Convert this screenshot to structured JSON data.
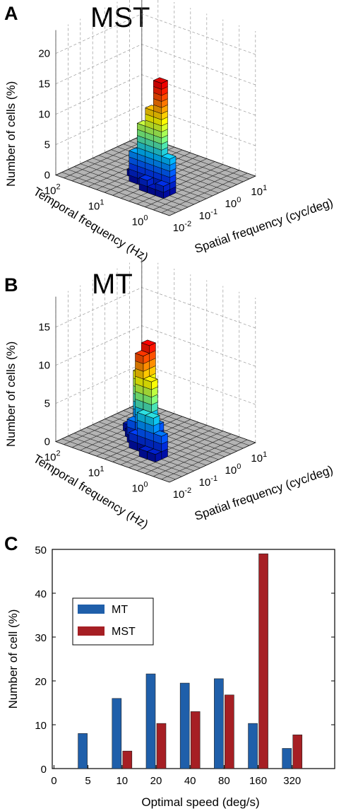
{
  "panels": {
    "a": {
      "letter": "A",
      "title": "MST"
    },
    "b": {
      "letter": "B",
      "title": "MT"
    },
    "c": {
      "letter": "C"
    }
  },
  "chart_data": [
    {
      "type": "bar3d",
      "panel": "A",
      "title": "MST",
      "zlabel": "Number of cells (%)",
      "xlabel": "Temporal frequency (Hz)",
      "ylabel": "Spatial frequency (cyc/deg)",
      "zticks": [
        "0",
        "5",
        "10",
        "15",
        "20"
      ],
      "zlim": [
        0,
        20
      ],
      "temporal_ticks": [
        {
          "base": "10",
          "exp": "2"
        },
        {
          "base": "10",
          "exp": "1"
        },
        {
          "base": "10",
          "exp": "0"
        }
      ],
      "spatial_ticks": [
        {
          "base": "10",
          "exp": "-2"
        },
        {
          "base": "10",
          "exp": "-1"
        },
        {
          "base": "10",
          "exp": "0"
        },
        {
          "base": "10",
          "exp": "1"
        }
      ],
      "colormap": [
        "#00008f",
        "#0040ff",
        "#00c0ff",
        "#80ff80",
        "#ffff00",
        "#ff8000",
        "#ff0000",
        "#800000"
      ],
      "bars": [
        {
          "t": 4,
          "s": 3,
          "value": 1
        },
        {
          "t": 4,
          "s": 4,
          "value": 18
        },
        {
          "t": 5,
          "s": 4,
          "value": 13
        },
        {
          "t": 3,
          "s": 4,
          "value": 6
        },
        {
          "t": 3,
          "s": 3,
          "value": 2
        },
        {
          "t": 5,
          "s": 3,
          "value": 2
        },
        {
          "t": 6,
          "s": 4,
          "value": 10
        },
        {
          "t": 6,
          "s": 5,
          "value": 6
        },
        {
          "t": 7,
          "s": 4,
          "value": 5
        },
        {
          "t": 6,
          "s": 6,
          "value": 7
        },
        {
          "t": 7,
          "s": 5,
          "value": 5
        },
        {
          "t": 7,
          "s": 6,
          "value": 1
        },
        {
          "t": 8,
          "s": 5,
          "value": 1
        },
        {
          "t": 7,
          "s": 7,
          "value": 1
        },
        {
          "t": 8,
          "s": 6,
          "value": 1
        },
        {
          "t": 8,
          "s": 7,
          "value": 1
        },
        {
          "t": 6,
          "s": 7,
          "value": 1
        },
        {
          "t": 5,
          "s": 5,
          "value": 1
        }
      ]
    },
    {
      "type": "bar3d",
      "panel": "B",
      "title": "MT",
      "zlabel": "Number of cells (%)",
      "xlabel": "Temporal frequency (Hz)",
      "ylabel": "Spatial frequency (cyc/deg)",
      "zticks": [
        "0",
        "5",
        "10",
        "15"
      ],
      "zlim": [
        0,
        15
      ],
      "temporal_ticks": [
        {
          "base": "10",
          "exp": "2"
        },
        {
          "base": "10",
          "exp": "1"
        },
        {
          "base": "10",
          "exp": "0"
        }
      ],
      "spatial_ticks": [
        {
          "base": "10",
          "exp": "-2"
        },
        {
          "base": "10",
          "exp": "-1"
        },
        {
          "base": "10",
          "exp": "0"
        },
        {
          "base": "10",
          "exp": "1"
        }
      ],
      "colormap": [
        "#00008f",
        "#0040ff",
        "#00c0ff",
        "#80ff80",
        "#ffff00",
        "#ff8000",
        "#ff0000",
        "#800000"
      ],
      "bars": [
        {
          "t": 4,
          "s": 3,
          "value": 1
        },
        {
          "t": 5,
          "s": 3,
          "value": 1
        },
        {
          "t": 4,
          "s": 4,
          "value": 3
        },
        {
          "t": 5,
          "s": 4,
          "value": 5
        },
        {
          "t": 6,
          "s": 4,
          "value": 5
        },
        {
          "t": 6,
          "s": 5,
          "value": 9
        },
        {
          "t": 7,
          "s": 5,
          "value": 12
        },
        {
          "t": 7,
          "s": 6,
          "value": 13
        },
        {
          "t": 8,
          "s": 6,
          "value": 9
        },
        {
          "t": 6,
          "s": 6,
          "value": 3
        },
        {
          "t": 7,
          "s": 4,
          "value": 2
        },
        {
          "t": 8,
          "s": 5,
          "value": 3
        },
        {
          "t": 8,
          "s": 7,
          "value": 2
        },
        {
          "t": 9,
          "s": 6,
          "value": 1
        },
        {
          "t": 9,
          "s": 7,
          "value": 2
        },
        {
          "t": 10,
          "s": 7,
          "value": 1
        },
        {
          "t": 9,
          "s": 8,
          "value": 1
        },
        {
          "t": 10,
          "s": 8,
          "value": 1
        },
        {
          "t": 8,
          "s": 8,
          "value": 1
        },
        {
          "t": 7,
          "s": 7,
          "value": 1
        }
      ]
    },
    {
      "type": "bar",
      "panel": "C",
      "title": "",
      "xlabel": "Optimal speed (deg/s)",
      "ylabel": "Number of cell (%)",
      "ylim": [
        0,
        50
      ],
      "yticks": [
        "0",
        "10",
        "20",
        "30",
        "40",
        "50"
      ],
      "xticks": [
        "0",
        "5",
        "10",
        "20",
        "40",
        "80",
        "160",
        "320"
      ],
      "categories": [
        "5",
        "10",
        "20",
        "40",
        "80",
        "160",
        "320"
      ],
      "series": [
        {
          "name": "MT",
          "color": "#1f5faa",
          "values": [
            8,
            16,
            21.6,
            19.5,
            20.5,
            10.3,
            4.6
          ]
        },
        {
          "name": "MST",
          "color": "#a61f24",
          "values": [
            0,
            4,
            10.3,
            13,
            16.8,
            49,
            7.7
          ]
        }
      ],
      "legend": "upper-left",
      "grid": false
    }
  ]
}
